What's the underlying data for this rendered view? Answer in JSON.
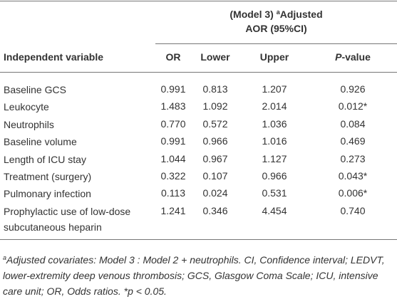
{
  "table": {
    "group_header": {
      "prefix": "(Model 3) ",
      "sup": "a",
      "text": "Adjusted",
      "line2": "AOR (95%CI)"
    },
    "columns": [
      "Independent variable",
      "OR",
      "Lower",
      "Upper",
      {
        "italic": "P",
        "rest": "-value"
      }
    ],
    "rows": [
      [
        "Baseline GCS",
        "0.991",
        "0.813",
        "1.207",
        "0.926"
      ],
      [
        "Leukocyte",
        "1.483",
        "1.092",
        "2.014",
        "0.012*"
      ],
      [
        "Neutrophils",
        "0.770",
        "0.572",
        "1.036",
        "0.084"
      ],
      [
        "Baseline volume",
        "0.991",
        "0.966",
        "1.016",
        "0.469"
      ],
      [
        "Length of ICU stay",
        "1.044",
        "0.967",
        "1.127",
        "0.273"
      ],
      [
        "Treatment (surgery)",
        "0.322",
        "0.107",
        "0.966",
        "0.043*"
      ],
      [
        "Pulmonary infection",
        "0.113",
        "0.024",
        "0.531",
        "0.006*"
      ],
      [
        "Prophylactic use of low-dose subcutaneous heparin",
        "1.241",
        "0.346",
        "4.454",
        "0.740"
      ]
    ],
    "footnote": {
      "sup": "a",
      "text": "Adjusted covariates: Model 3 : Model 2 + neutrophils. CI, Confidence interval; LEDVT, lower-extremity deep venous thrombosis; GCS, Glasgow Coma Scale; ICU, intensive care unit; OR, Odds ratios. *p < 0.05."
    }
  }
}
